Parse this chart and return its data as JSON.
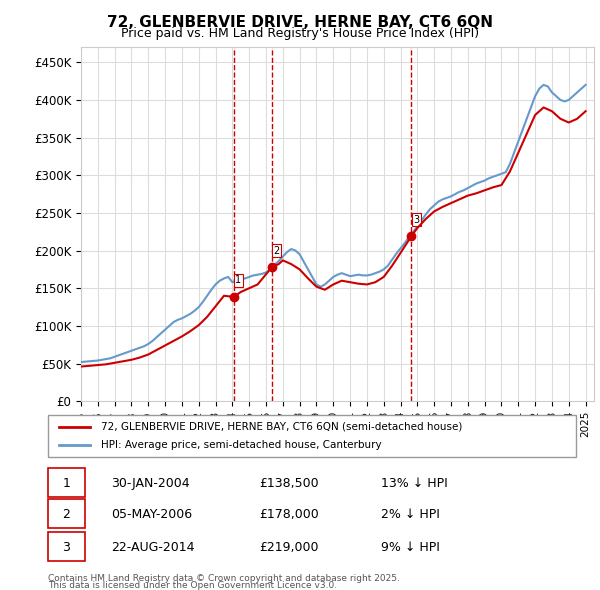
{
  "title": "72, GLENBERVIE DRIVE, HERNE BAY, CT6 6QN",
  "subtitle": "Price paid vs. HM Land Registry's House Price Index (HPI)",
  "legend_line1": "72, GLENBERVIE DRIVE, HERNE BAY, CT6 6QN (semi-detached house)",
  "legend_line2": "HPI: Average price, semi-detached house, Canterbury",
  "footer_line1": "Contains HM Land Registry data © Crown copyright and database right 2025.",
  "footer_line2": "This data is licensed under the Open Government Licence v3.0.",
  "transactions": [
    {
      "num": 1,
      "date": "30-JAN-2004",
      "price": "£138,500",
      "hpi_diff": "13% ↓ HPI",
      "year": 2004.08
    },
    {
      "num": 2,
      "date": "05-MAY-2006",
      "price": "£178,000",
      "hpi_diff": "2% ↓ HPI",
      "year": 2006.35
    },
    {
      "num": 3,
      "date": "22-AUG-2014",
      "price": "£219,000",
      "hpi_diff": "9% ↓ HPI",
      "year": 2014.64
    }
  ],
  "transaction_values": [
    138500,
    178000,
    219000
  ],
  "vline_color": "#cc0000",
  "hpi_color": "#6699cc",
  "price_color": "#cc0000",
  "ylim": [
    0,
    470000
  ],
  "xlim_start": 1995.0,
  "xlim_end": 2025.5,
  "bg_color": "#ffffff",
  "grid_color": "#dddddd",
  "hpi_data": {
    "years": [
      1995.0,
      1995.25,
      1995.5,
      1995.75,
      1996.0,
      1996.25,
      1996.5,
      1996.75,
      1997.0,
      1997.25,
      1997.5,
      1997.75,
      1998.0,
      1998.25,
      1998.5,
      1998.75,
      1999.0,
      1999.25,
      1999.5,
      1999.75,
      2000.0,
      2000.25,
      2000.5,
      2000.75,
      2001.0,
      2001.25,
      2001.5,
      2001.75,
      2002.0,
      2002.25,
      2002.5,
      2002.75,
      2003.0,
      2003.25,
      2003.5,
      2003.75,
      2004.0,
      2004.25,
      2004.5,
      2004.75,
      2005.0,
      2005.25,
      2005.5,
      2005.75,
      2006.0,
      2006.25,
      2006.5,
      2006.75,
      2007.0,
      2007.25,
      2007.5,
      2007.75,
      2008.0,
      2008.25,
      2008.5,
      2008.75,
      2009.0,
      2009.25,
      2009.5,
      2009.75,
      2010.0,
      2010.25,
      2010.5,
      2010.75,
      2011.0,
      2011.25,
      2011.5,
      2011.75,
      2012.0,
      2012.25,
      2012.5,
      2012.75,
      2013.0,
      2013.25,
      2013.5,
      2013.75,
      2014.0,
      2014.25,
      2014.5,
      2014.75,
      2015.0,
      2015.25,
      2015.5,
      2015.75,
      2016.0,
      2016.25,
      2016.5,
      2016.75,
      2017.0,
      2017.25,
      2017.5,
      2017.75,
      2018.0,
      2018.25,
      2018.5,
      2018.75,
      2019.0,
      2019.25,
      2019.5,
      2019.75,
      2020.0,
      2020.25,
      2020.5,
      2020.75,
      2021.0,
      2021.25,
      2021.5,
      2021.75,
      2022.0,
      2022.25,
      2022.5,
      2022.75,
      2023.0,
      2023.25,
      2023.5,
      2023.75,
      2024.0,
      2024.25,
      2024.5,
      2024.75,
      2025.0
    ],
    "values": [
      52000,
      52500,
      53000,
      53500,
      54000,
      55000,
      56000,
      57000,
      59000,
      61000,
      63000,
      65000,
      67000,
      69000,
      71000,
      73000,
      76000,
      80000,
      85000,
      90000,
      95000,
      100000,
      105000,
      108000,
      110000,
      113000,
      116000,
      120000,
      125000,
      132000,
      140000,
      148000,
      155000,
      160000,
      163000,
      165000,
      158000,
      160000,
      162000,
      163000,
      165000,
      167000,
      168000,
      169000,
      171000,
      175000,
      181000,
      186000,
      192000,
      198000,
      202000,
      200000,
      195000,
      185000,
      175000,
      165000,
      155000,
      152000,
      155000,
      160000,
      165000,
      168000,
      170000,
      168000,
      166000,
      167000,
      168000,
      167000,
      167000,
      168000,
      170000,
      172000,
      175000,
      180000,
      188000,
      196000,
      203000,
      210000,
      218000,
      225000,
      232000,
      240000,
      248000,
      255000,
      260000,
      265000,
      268000,
      270000,
      272000,
      275000,
      278000,
      280000,
      283000,
      286000,
      289000,
      291000,
      293000,
      296000,
      298000,
      300000,
      302000,
      304000,
      315000,
      330000,
      345000,
      360000,
      375000,
      390000,
      405000,
      415000,
      420000,
      418000,
      410000,
      405000,
      400000,
      398000,
      400000,
      405000,
      410000,
      415000,
      420000
    ]
  },
  "price_data": {
    "years": [
      1995.0,
      1995.5,
      1996.0,
      1996.5,
      1997.0,
      1997.5,
      1998.0,
      1998.5,
      1999.0,
      1999.5,
      2000.0,
      2000.5,
      2001.0,
      2001.5,
      2002.0,
      2002.5,
      2003.0,
      2003.5,
      2004.08,
      2004.5,
      2005.0,
      2005.5,
      2006.35,
      2006.75,
      2007.0,
      2007.5,
      2008.0,
      2008.5,
      2009.0,
      2009.5,
      2010.0,
      2010.5,
      2011.0,
      2011.5,
      2012.0,
      2012.5,
      2013.0,
      2013.5,
      2014.0,
      2014.64,
      2015.0,
      2015.5,
      2016.0,
      2016.5,
      2017.0,
      2017.5,
      2018.0,
      2018.5,
      2019.0,
      2019.5,
      2020.0,
      2020.5,
      2021.0,
      2021.5,
      2022.0,
      2022.5,
      2023.0,
      2023.5,
      2024.0,
      2024.5,
      2025.0
    ],
    "values": [
      46000,
      47000,
      48000,
      49000,
      51000,
      53000,
      55000,
      58000,
      62000,
      68000,
      74000,
      80000,
      86000,
      93000,
      101000,
      112000,
      126000,
      140000,
      138500,
      145000,
      150000,
      155000,
      178000,
      182000,
      187000,
      182000,
      175000,
      163000,
      152000,
      148000,
      155000,
      160000,
      158000,
      156000,
      155000,
      158000,
      165000,
      180000,
      197000,
      219000,
      230000,
      242000,
      252000,
      258000,
      263000,
      268000,
      273000,
      276000,
      280000,
      284000,
      287000,
      305000,
      330000,
      355000,
      380000,
      390000,
      385000,
      375000,
      370000,
      375000,
      385000
    ]
  }
}
